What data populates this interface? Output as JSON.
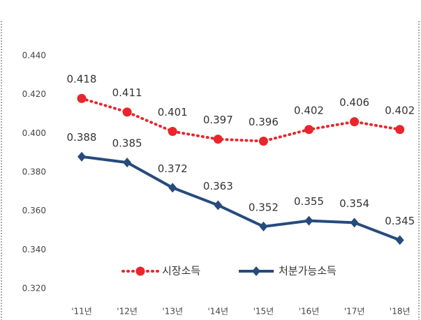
{
  "chart_data": {
    "type": "line",
    "categories": [
      "'11년",
      "'12년",
      "'13년",
      "'14년",
      "'15년",
      "'16년",
      "'17년",
      "'18년"
    ],
    "series": [
      {
        "name": "시장소득",
        "color": "#e8262b",
        "values": [
          0.418,
          0.411,
          0.401,
          0.397,
          0.396,
          0.402,
          0.406,
          0.402
        ]
      },
      {
        "name": "처분가능소득",
        "color": "#264b7d",
        "values": [
          0.388,
          0.385,
          0.372,
          0.363,
          0.352,
          0.355,
          0.354,
          0.345
        ]
      }
    ],
    "ylim": [
      0.32,
      0.44
    ],
    "yticks": [
      {
        "value": 0.32,
        "label": "0.320"
      },
      {
        "value": 0.34,
        "label": "0.340"
      },
      {
        "value": 0.36,
        "label": "0.360"
      },
      {
        "value": 0.38,
        "label": "0.380"
      },
      {
        "value": 0.4,
        "label": "0.400"
      },
      {
        "value": 0.42,
        "label": "0.420"
      },
      {
        "value": 0.44,
        "label": "0.440"
      }
    ],
    "grid": false,
    "legend": "bottom"
  }
}
